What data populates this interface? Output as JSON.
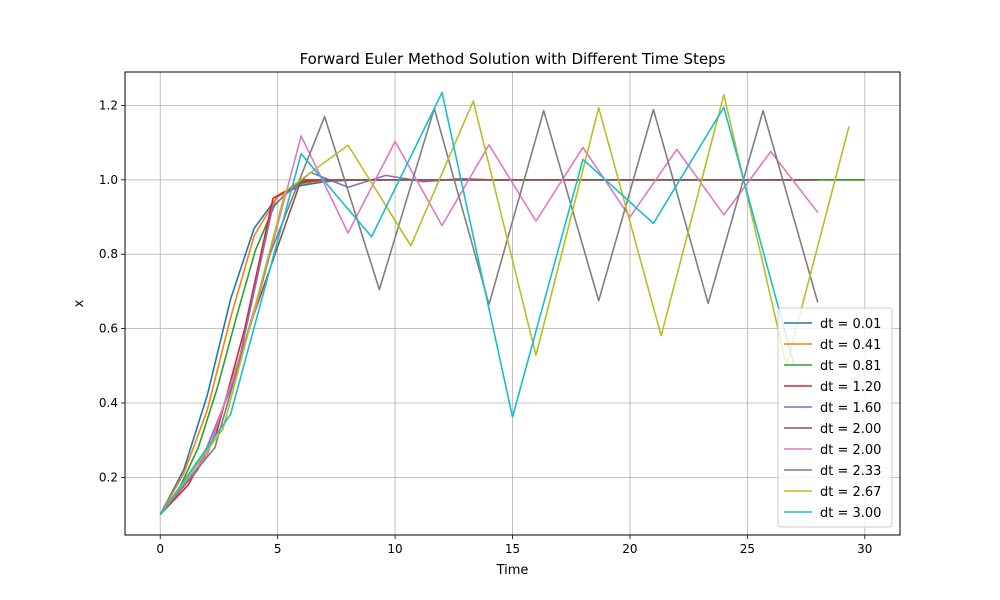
{
  "chart_data": {
    "type": "line",
    "title": "Forward Euler Method Solution with Different Time Steps",
    "xlabel": "Time",
    "ylabel": "x",
    "xlim": [
      -1.5,
      31.5
    ],
    "ylim": [
      0.045,
      1.29
    ],
    "xticks": [
      0,
      5,
      10,
      15,
      20,
      25,
      30
    ],
    "yticks": [
      0.2,
      0.4,
      0.6,
      0.8,
      1.0,
      1.2
    ],
    "xtick_labels": [
      "0",
      "5",
      "10",
      "15",
      "20",
      "25",
      "30"
    ],
    "ytick_labels": [
      "0.2",
      "0.4",
      "0.6",
      "0.8",
      "1.0",
      "1.2"
    ],
    "grid": true,
    "legend_position": "bottom-right",
    "series": [
      {
        "name": "dt = 0.01",
        "color": "#1f77b4",
        "x": [
          0,
          1,
          2,
          3,
          4,
          5,
          6,
          7,
          8,
          10,
          15,
          20,
          25,
          30
        ],
        "y": [
          0.1,
          0.22,
          0.42,
          0.68,
          0.87,
          0.955,
          0.985,
          0.995,
          0.999,
          1.0,
          1.0,
          1.0,
          1.0,
          1.0
        ]
      },
      {
        "name": "dt = 0.41",
        "color": "#ff7f0e",
        "x": [
          0,
          1,
          2,
          3,
          4,
          5,
          6,
          7,
          8,
          10,
          15,
          20,
          25,
          30
        ],
        "y": [
          0.1,
          0.21,
          0.38,
          0.63,
          0.85,
          0.955,
          0.99,
          0.998,
          1.0,
          1.0,
          1.0,
          1.0,
          1.0,
          1.0
        ]
      },
      {
        "name": "dt = 0.81",
        "color": "#2ca02c",
        "x": [
          0,
          0.81,
          1.62,
          2.43,
          3.24,
          4.05,
          4.86,
          5.67,
          6.48,
          7.29,
          8.1,
          10,
          15,
          20,
          25,
          30
        ],
        "y": [
          0.1,
          0.17,
          0.28,
          0.44,
          0.63,
          0.81,
          0.93,
          0.985,
          0.998,
          1.0,
          1.0,
          1.0,
          1.0,
          1.0,
          1.0,
          1.0
        ]
      },
      {
        "name": "dt = 1.20",
        "color": "#d62728",
        "x": [
          0,
          1.2,
          2.4,
          3.6,
          4.8,
          6.0,
          7.2,
          8.4,
          10,
          15,
          20,
          25,
          28
        ],
        "y": [
          0.1,
          0.18,
          0.32,
          0.6,
          0.95,
          0.995,
          1.0,
          1.0,
          1.0,
          1.0,
          1.0,
          1.0,
          1.0
        ]
      },
      {
        "name": "dt = 1.60",
        "color": "#9467bd",
        "x": [
          0,
          1.6,
          3.2,
          4.8,
          6.4,
          8.0,
          9.6,
          11.2,
          12.8,
          14.4,
          16,
          20,
          25,
          28
        ],
        "y": [
          0.1,
          0.22,
          0.47,
          0.93,
          1.02,
          0.98,
          1.012,
          0.995,
          1.003,
          0.999,
          1.0,
          1.0,
          1.0,
          1.0
        ]
      },
      {
        "name": "dt = 2.00",
        "color": "#8c564b",
        "x": [
          0,
          2,
          4,
          6,
          8,
          10,
          12,
          14,
          16,
          18,
          20,
          22,
          24,
          26,
          28
        ],
        "y": [
          0.1,
          0.26,
          0.64,
          1.0,
          1.0,
          1.0,
          1.0,
          1.0,
          1.0,
          1.0,
          1.0,
          1.0,
          1.0,
          1.0,
          1.0
        ]
      },
      {
        "name": "dt = 2.00",
        "color": "#e377c2",
        "x": [
          0,
          2,
          4,
          6,
          8,
          10,
          12,
          14,
          16,
          18,
          20,
          22,
          24,
          26,
          28
        ],
        "y": [
          0.1,
          0.26,
          0.64,
          1.118,
          0.857,
          1.103,
          0.877,
          1.094,
          0.889,
          1.087,
          0.9,
          1.082,
          0.906,
          1.076,
          0.912
        ]
      },
      {
        "name": "dt = 2.33",
        "color": "#7f7f7f",
        "x": [
          0,
          2.33,
          4.67,
          7.0,
          9.33,
          11.67,
          14.0,
          16.33,
          18.67,
          21.0,
          23.33,
          25.67,
          28.0
        ],
        "y": [
          0.1,
          0.28,
          0.8,
          1.17,
          0.705,
          1.192,
          0.665,
          1.186,
          0.675,
          1.189,
          0.668,
          1.186,
          0.67
        ]
      },
      {
        "name": "dt = 2.67",
        "color": "#bcbd22",
        "x": [
          0,
          2.67,
          5.33,
          8.0,
          10.67,
          13.33,
          16.0,
          18.67,
          21.33,
          24.0,
          26.67,
          29.33
        ],
        "y": [
          0.1,
          0.33,
          0.97,
          1.093,
          0.823,
          1.212,
          0.528,
          1.194,
          0.581,
          1.229,
          0.5,
          1.144
        ]
      },
      {
        "name": "dt = 3.00",
        "color": "#17becf",
        "x": [
          0,
          3,
          6,
          9,
          12,
          15,
          18,
          21,
          24,
          27
        ],
        "y": [
          0.1,
          0.37,
          1.07,
          0.847,
          1.235,
          0.362,
          1.055,
          0.883,
          1.195,
          0.5
        ]
      }
    ]
  }
}
